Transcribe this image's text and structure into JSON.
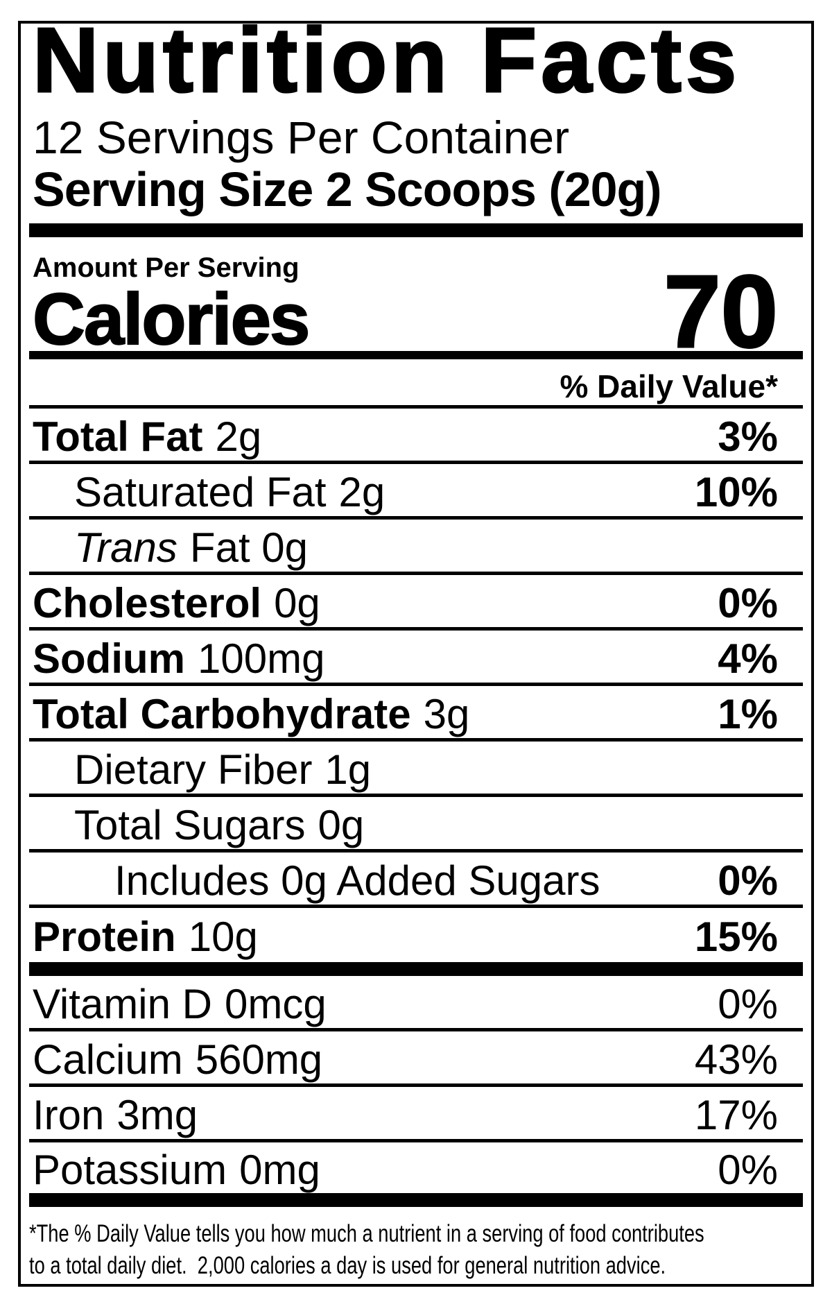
{
  "nutrition_label": {
    "title": "Nutrition Facts",
    "servings_per_container": "12 Servings Per Container",
    "serving_size": "Serving Size 2 Scoops (20g)",
    "amount_per_serving": "Amount Per Serving",
    "calories": {
      "label": "Calories",
      "value": "70"
    },
    "daily_value_header": "% Daily Value*",
    "nutrients": [
      {
        "name": "Total Fat",
        "amount": "2g",
        "percent": "3%"
      },
      {
        "name": "Saturated Fat",
        "amount": "2g",
        "percent": "10%"
      },
      {
        "name": "Trans",
        "amount": "Fat 0g",
        "percent": ""
      },
      {
        "name": "Cholesterol",
        "amount": "0g",
        "percent": "0%"
      },
      {
        "name": "Sodium",
        "amount": "100mg",
        "percent": "4%"
      },
      {
        "name": "Total Carbohydrate",
        "amount": "3g",
        "percent": "1%"
      },
      {
        "name": "Dietary Fiber",
        "amount": "1g",
        "percent": ""
      },
      {
        "name": "Total Sugars",
        "amount": "0g",
        "percent": ""
      },
      {
        "name": "Includes 0g Added Sugars",
        "amount": "",
        "percent": "0%"
      },
      {
        "name": "Protein",
        "amount": "10g",
        "percent": "15%"
      }
    ],
    "micronutrients": [
      {
        "name": "Vitamin D",
        "amount": "0mcg",
        "percent": "0%"
      },
      {
        "name": "Calcium",
        "amount": "560mg",
        "percent": "43%"
      },
      {
        "name": "Iron",
        "amount": "3mg",
        "percent": "17%"
      },
      {
        "name": "Potassium",
        "amount": "0mg",
        "percent": "0%"
      }
    ],
    "footnote_line1": "*The % Daily Value tells you how much a nutrient in a serving of food contributes",
    "footnote_line2": "to a total daily diet.  2,000 calories a day is used for general nutrition advice."
  },
  "colors": {
    "text": "#000000",
    "background": "#ffffff"
  }
}
